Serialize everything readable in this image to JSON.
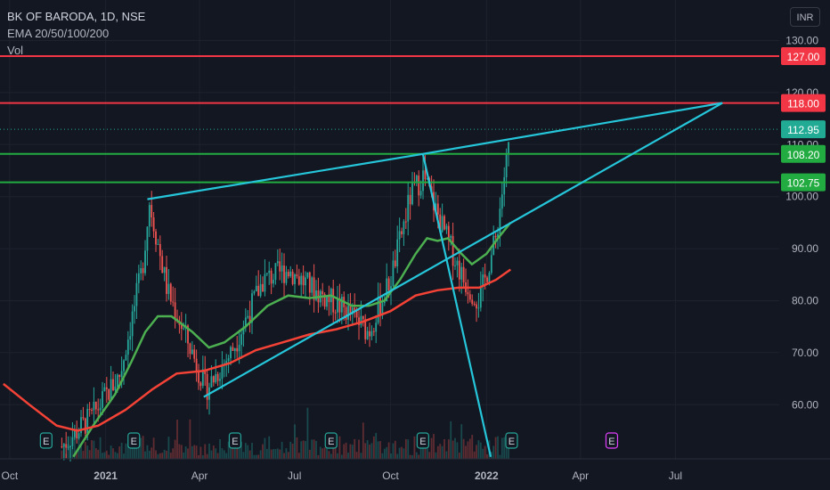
{
  "legend": {
    "title": "BK OF BARODA, 1D, NSE",
    "indicator": "EMA 20/50/100/200",
    "volume": "Vol"
  },
  "currency": "INR",
  "chart_data": {
    "type": "candlestick",
    "y_ticks": [
      "60.00",
      "70.00",
      "80.00",
      "90.00",
      "100.00",
      "110.00",
      "120.00",
      "130.00"
    ],
    "x_ticks": [
      "Oct",
      "2021",
      "Apr",
      "Jul",
      "Oct",
      "2022",
      "Apr",
      "Jul"
    ],
    "price_lines": [
      {
        "label": "127.00",
        "value": 127.0,
        "color": "#f23645"
      },
      {
        "label": "118.00",
        "value": 118.0,
        "color": "#f23645"
      },
      {
        "label": "112.95",
        "value": 112.95,
        "color": "#22ab94",
        "dotted": true
      },
      {
        "label": "108.20",
        "value": 108.2,
        "color": "#22ab41"
      },
      {
        "label": "102.75",
        "value": 102.75,
        "color": "#22ab41"
      }
    ],
    "trend_lines": [
      {
        "from": [
          "2021-02-10",
          99.5
        ],
        "to": [
          "2021-11-01",
          108.2
        ]
      },
      {
        "from": [
          "2021-11-01",
          108.2
        ],
        "to": [
          "2022-08-15",
          118.0
        ]
      },
      {
        "from": [
          "2021-04-05",
          61.5
        ],
        "to": [
          "2022-08-15",
          118.0
        ]
      },
      {
        "from": [
          "2021-11-01",
          108.2
        ],
        "to": [
          "2022-01-05",
          50.0
        ]
      }
    ],
    "ema_green": [
      [
        "2020-12-01",
        50
      ],
      [
        "2020-12-20",
        56
      ],
      [
        "2021-01-10",
        62
      ],
      [
        "2021-01-25",
        68
      ],
      [
        "2021-02-08",
        74
      ],
      [
        "2021-02-20",
        77
      ],
      [
        "2021-03-05",
        77
      ],
      [
        "2021-03-25",
        74
      ],
      [
        "2021-04-10",
        71
      ],
      [
        "2021-04-25",
        72
      ],
      [
        "2021-05-15",
        75
      ],
      [
        "2021-06-05",
        79
      ],
      [
        "2021-06-25",
        81
      ],
      [
        "2021-07-15",
        80.5
      ],
      [
        "2021-08-05",
        81
      ],
      [
        "2021-08-25",
        79
      ],
      [
        "2021-09-10",
        79
      ],
      [
        "2021-09-25",
        80
      ],
      [
        "2021-10-10",
        84
      ],
      [
        "2021-10-25",
        89
      ],
      [
        "2021-11-05",
        92
      ],
      [
        "2021-11-15",
        91.5
      ],
      [
        "2021-11-25",
        92
      ],
      [
        "2021-12-08",
        89
      ],
      [
        "2021-12-18",
        87
      ],
      [
        "2022-01-01",
        89
      ],
      [
        "2022-01-12",
        92
      ],
      [
        "2022-01-24",
        95
      ]
    ],
    "ema_red": [
      [
        "2020-09-25",
        64
      ],
      [
        "2020-10-20",
        60
      ],
      [
        "2020-11-15",
        56
      ],
      [
        "2020-12-05",
        55
      ],
      [
        "2020-12-25",
        56
      ],
      [
        "2021-01-20",
        59
      ],
      [
        "2021-02-15",
        63
      ],
      [
        "2021-03-10",
        66
      ],
      [
        "2021-04-05",
        66.5
      ],
      [
        "2021-04-30",
        68
      ],
      [
        "2021-05-25",
        70.5
      ],
      [
        "2021-06-20",
        72
      ],
      [
        "2021-07-15",
        73.5
      ],
      [
        "2021-08-10",
        74.5
      ],
      [
        "2021-09-05",
        76
      ],
      [
        "2021-10-01",
        78
      ],
      [
        "2021-10-25",
        81
      ],
      [
        "2021-11-15",
        82
      ],
      [
        "2021-12-05",
        82.5
      ],
      [
        "2021-12-25",
        82.5
      ],
      [
        "2022-01-10",
        84
      ],
      [
        "2022-01-24",
        86
      ]
    ],
    "earnings_markers": [
      {
        "date": "2020-11-05",
        "label": "E"
      },
      {
        "date": "2021-01-28",
        "label": "E"
      },
      {
        "date": "2021-05-05",
        "label": "E"
      },
      {
        "date": "2021-08-05",
        "label": "E"
      },
      {
        "date": "2021-11-01",
        "label": "E"
      },
      {
        "date": "2022-01-25",
        "label": "E"
      },
      {
        "date": "2022-05-01",
        "label": "E",
        "upcoming": true
      }
    ]
  }
}
